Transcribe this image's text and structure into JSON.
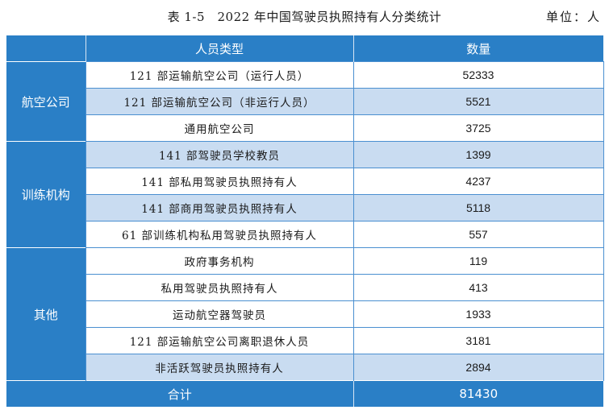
{
  "caption": {
    "title": "表 1-5　2022 年中国驾驶员执照持有人分类统计",
    "unit": "单位：人"
  },
  "table": {
    "headers": [
      "",
      "人员类型",
      "数量"
    ],
    "groups": [
      {
        "name": "航空公司",
        "rows": [
          {
            "type": "121 部运输航空公司（运行人员）",
            "count": "52333"
          },
          {
            "type": "121 部运输航空公司（非运行人员）",
            "count": "5521"
          },
          {
            "type": "通用航空公司",
            "count": "3725"
          }
        ]
      },
      {
        "name": "训练机构",
        "rows": [
          {
            "type": "141 部驾驶员学校教员",
            "count": "1399"
          },
          {
            "type": "141 部私用驾驶员执照持有人",
            "count": "4237"
          },
          {
            "type": "141 部商用驾驶员执照持有人",
            "count": "5118"
          },
          {
            "type": "61 部训练机构私用驾驶员执照持有人",
            "count": "557"
          }
        ]
      },
      {
        "name": "其他",
        "rows": [
          {
            "type": "政府事务机构",
            "count": "119"
          },
          {
            "type": "私用驾驶员执照持有人",
            "count": "413"
          },
          {
            "type": "运动航空器驾驶员",
            "count": "1933"
          },
          {
            "type": "121 部运输航空公司离职退休人员",
            "count": "3181"
          },
          {
            "type": "非活跃驾驶员执照持有人",
            "count": "2894"
          }
        ]
      }
    ],
    "total": {
      "label": "合计",
      "count": "81430"
    }
  },
  "colors": {
    "header_blue": "#2a7fc6",
    "row_light_blue": "#c9dcf1"
  }
}
